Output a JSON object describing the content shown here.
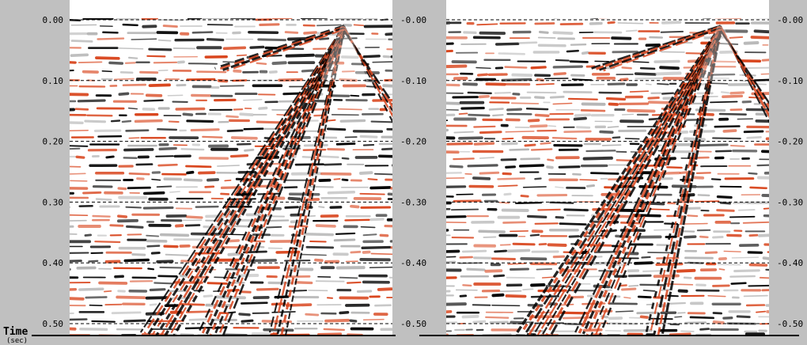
{
  "chart_data": [
    {
      "type": "heatmap",
      "panel": "left",
      "ylabel": "Time",
      "ylabel_unit": "(sec)",
      "ylim": [
        0.0,
        0.5
      ],
      "y_ticks_left": [
        "0.00",
        "0.10",
        "0.20",
        "0.30",
        "0.40",
        "0.50"
      ],
      "y_ticks_right": [
        "-0.00",
        "-0.10",
        "-0.20",
        "-0.30",
        "-0.40",
        "-0.50"
      ],
      "grid": "horizontal dashed at each tick",
      "colors": {
        "positive": "#d9461e",
        "negative": "#000000",
        "background": "#ffffff"
      },
      "apex_time": 0.01,
      "apex_x_fraction": 0.85
    },
    {
      "type": "heatmap",
      "panel": "right",
      "ylim": [
        0.0,
        0.5
      ],
      "y_ticks_left": [],
      "y_ticks_right": [
        "-0.00",
        "-0.10",
        "-0.20",
        "-0.30",
        "-0.40",
        "-0.50"
      ],
      "grid": "horizontal dashed at each tick",
      "colors": {
        "positive": "#d9461e",
        "negative": "#000000",
        "background": "#ffffff"
      },
      "apex_time": 0.01,
      "apex_x_fraction": 0.85
    }
  ]
}
